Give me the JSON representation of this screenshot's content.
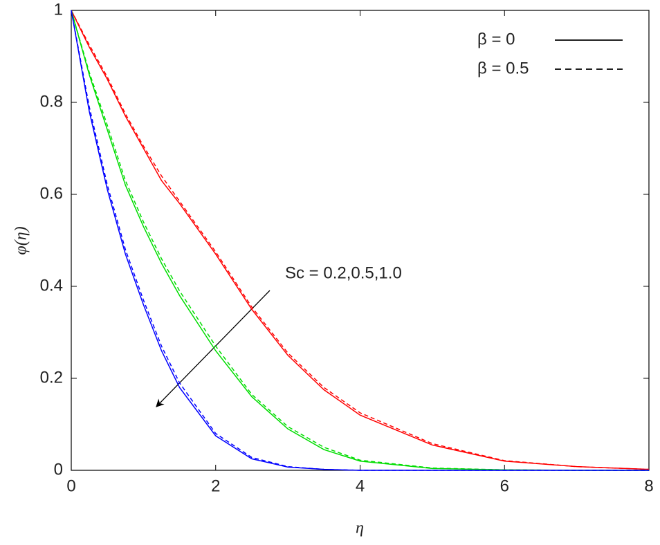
{
  "chart_data": {
    "type": "line",
    "x_label": "η",
    "y_label": "φ(η)",
    "x": [
      0,
      0.25,
      0.5,
      0.75,
      1,
      1.25,
      1.5,
      2,
      2.5,
      3,
      3.5,
      4,
      5,
      6,
      7,
      8
    ],
    "series": [
      {
        "color": "#ff0000",
        "dash": false,
        "values": [
          1,
          0.92,
          0.85,
          0.77,
          0.7,
          0.63,
          0.58,
          0.47,
          0.35,
          0.25,
          0.175,
          0.12,
          0.055,
          0.02,
          0.008,
          0.002
        ]
      },
      {
        "color": "#ff0000",
        "dash": true,
        "values": [
          1,
          0.925,
          0.855,
          0.775,
          0.705,
          0.64,
          0.585,
          0.475,
          0.355,
          0.255,
          0.18,
          0.125,
          0.058,
          0.021,
          0.008,
          0.002
        ]
      },
      {
        "color": "#00dd00",
        "dash": false,
        "values": [
          1,
          0.86,
          0.74,
          0.62,
          0.53,
          0.45,
          0.38,
          0.26,
          0.16,
          0.09,
          0.045,
          0.02,
          0.004,
          0.001,
          0,
          0
        ]
      },
      {
        "color": "#00dd00",
        "dash": true,
        "values": [
          1,
          0.865,
          0.75,
          0.63,
          0.54,
          0.46,
          0.39,
          0.27,
          0.165,
          0.095,
          0.05,
          0.022,
          0.005,
          0.001,
          0,
          0
        ]
      },
      {
        "color": "#0000ff",
        "dash": false,
        "values": [
          1,
          0.78,
          0.61,
          0.47,
          0.36,
          0.26,
          0.18,
          0.075,
          0.025,
          0.007,
          0.002,
          0,
          0,
          0,
          0,
          0
        ]
      },
      {
        "color": "#0000ff",
        "dash": true,
        "values": [
          1,
          0.79,
          0.62,
          0.48,
          0.37,
          0.27,
          0.19,
          0.08,
          0.028,
          0.008,
          0.002,
          0,
          0,
          0,
          0,
          0
        ]
      }
    ],
    "legend": [
      {
        "label": "β = 0",
        "dash": false
      },
      {
        "label": "β = 0.5",
        "dash": true
      }
    ],
    "legend_position": "upper right",
    "annotation": "Sc = 0.2,0.5,1.0",
    "xlim": [
      0,
      8
    ],
    "xticks": [
      0,
      2,
      4,
      6,
      8
    ],
    "ylim": [
      0,
      1
    ],
    "yticks": [
      0,
      0.2,
      0.4,
      0.6,
      0.8,
      1
    ]
  }
}
